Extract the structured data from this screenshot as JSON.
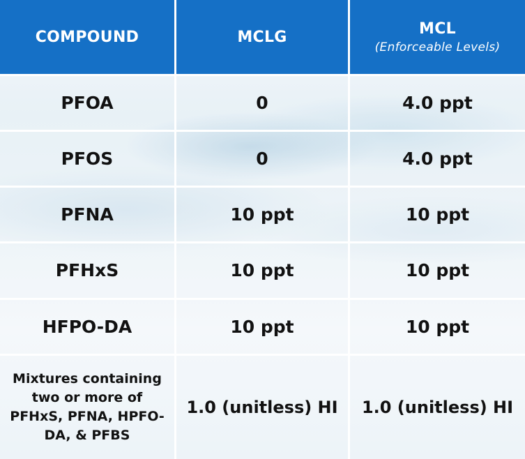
{
  "table": {
    "headers": {
      "compound": "COMPOUND",
      "mclg": "MCLG",
      "mcl": "MCL",
      "mcl_sub": "(Enforceable Levels)"
    },
    "rows": [
      {
        "compound": "PFOA",
        "mclg": "0",
        "mcl": "4.0 ppt"
      },
      {
        "compound": "PFOS",
        "mclg": "0",
        "mcl": "4.0 ppt"
      },
      {
        "compound": "PFNA",
        "mclg": "10 ppt",
        "mcl": "10 ppt"
      },
      {
        "compound": "PFHxS",
        "mclg": "10 ppt",
        "mcl": "10 ppt"
      },
      {
        "compound": "HFPO-DA",
        "mclg": "10 ppt",
        "mcl": "10 ppt"
      },
      {
        "compound": "Mixtures containing two or more of PFHxS, PFNA, HPFO-DA, & PFBS",
        "mclg": "1.0 (unitless) HI",
        "mcl": "1.0 (unitless) HI"
      }
    ]
  },
  "colors": {
    "header_bg": "#1570c6",
    "header_text": "#ffffff",
    "cell_text": "#111111"
  }
}
